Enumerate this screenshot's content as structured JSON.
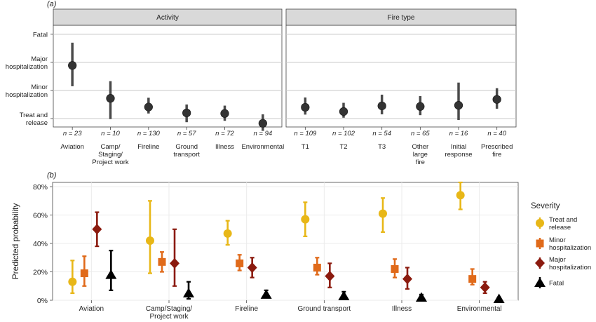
{
  "chart_data": [
    {
      "type": "scatter",
      "panel_label": "(a)",
      "y_levels": [
        "Fatal",
        "Major hospitalization",
        "Minor hospitalization",
        "Treat and release"
      ],
      "y_ticks": [
        {
          "label": "Fatal",
          "value": 4
        },
        {
          "label": "Major hospitalization",
          "value": 3
        },
        {
          "label": "Minor hospitalization",
          "value": 2
        },
        {
          "label": "Treat and release",
          "value": 1
        }
      ],
      "ylim": [
        0.7,
        4.32
      ],
      "facets": [
        {
          "title": "Activity",
          "points": [
            {
              "label": "Aviation",
              "n": "n = 23",
              "mean": 2.89,
              "lo": 2.15,
              "hi": 3.7
            },
            {
              "label": "Camp/ Staging/ Project work",
              "n": "n = 10",
              "mean": 1.72,
              "lo": 0.98,
              "hi": 2.33
            },
            {
              "label": "Fireline",
              "n": "n = 130",
              "mean": 1.41,
              "lo": 1.18,
              "hi": 1.74
            },
            {
              "label": "Ground transport",
              "n": "n = 57",
              "mean": 1.2,
              "lo": 0.87,
              "hi": 1.5
            },
            {
              "label": "Illness",
              "n": "n = 72",
              "mean": 1.18,
              "lo": 0.92,
              "hi": 1.46
            },
            {
              "label": "Environmental",
              "n": "n = 94",
              "mean": 0.83,
              "lo": 0.56,
              "hi": 1.15
            }
          ]
        },
        {
          "title": "Fire type",
          "points": [
            {
              "label": "T1",
              "n": "n = 109",
              "mean": 1.4,
              "lo": 1.14,
              "hi": 1.75
            },
            {
              "label": "T2",
              "n": "n = 102",
              "mean": 1.25,
              "lo": 1.03,
              "hi": 1.56
            },
            {
              "label": "T3",
              "n": "n = 54",
              "mean": 1.45,
              "lo": 1.15,
              "hi": 1.85
            },
            {
              "label": "Other large fire",
              "n": "n = 65",
              "mean": 1.43,
              "lo": 1.12,
              "hi": 1.8
            },
            {
              "label": "Initial response",
              "n": "n = 16",
              "mean": 1.47,
              "lo": 0.95,
              "hi": 2.28
            },
            {
              "label": "Prescribed fire",
              "n": "n = 40",
              "mean": 1.68,
              "lo": 1.35,
              "hi": 2.08
            }
          ]
        }
      ]
    },
    {
      "type": "scatter",
      "panel_label": "(b)",
      "ylabel": "Predicted probability",
      "ylim": [
        0,
        0.83
      ],
      "y_ticks": [
        {
          "label": "0%",
          "value": 0
        },
        {
          "label": "20%",
          "value": 0.2
        },
        {
          "label": "40%",
          "value": 0.4
        },
        {
          "label": "60%",
          "value": 0.6
        },
        {
          "label": "80%",
          "value": 0.8
        }
      ],
      "categories": [
        "Aviation",
        "Camp/Staging/ Project work",
        "Fireline",
        "Ground transport",
        "Illness",
        "Environmental"
      ],
      "legend_title": "Severity",
      "series": [
        {
          "name": "Treat and release",
          "color": "#E8B717",
          "shape": "circle",
          "values": [
            0.13,
            0.42,
            0.47,
            0.57,
            0.61,
            0.74
          ],
          "lower": [
            0.05,
            0.19,
            0.39,
            0.45,
            0.48,
            0.64
          ],
          "upper": [
            0.28,
            0.7,
            0.56,
            0.69,
            0.72,
            0.83
          ]
        },
        {
          "name": "Minor hospitalization",
          "color": "#E06A1A",
          "shape": "square",
          "values": [
            0.19,
            0.27,
            0.26,
            0.23,
            0.22,
            0.15
          ],
          "lower": [
            0.1,
            0.2,
            0.21,
            0.18,
            0.16,
            0.11
          ],
          "upper": [
            0.31,
            0.34,
            0.32,
            0.3,
            0.29,
            0.22
          ]
        },
        {
          "name": "Major hospitalization",
          "color": "#8B1A0E",
          "shape": "diamond",
          "values": [
            0.5,
            0.26,
            0.23,
            0.17,
            0.15,
            0.09
          ],
          "lower": [
            0.38,
            0.1,
            0.16,
            0.09,
            0.08,
            0.05
          ],
          "upper": [
            0.62,
            0.5,
            0.3,
            0.26,
            0.23,
            0.13
          ]
        },
        {
          "name": "Fatal",
          "color": "#000000",
          "shape": "triangle",
          "values": [
            0.18,
            0.05,
            0.04,
            0.03,
            0.02,
            0.01
          ],
          "lower": [
            0.07,
            0.01,
            0.02,
            0.01,
            0.005,
            0.0
          ],
          "upper": [
            0.35,
            0.13,
            0.07,
            0.06,
            0.04,
            0.02
          ]
        }
      ]
    }
  ]
}
